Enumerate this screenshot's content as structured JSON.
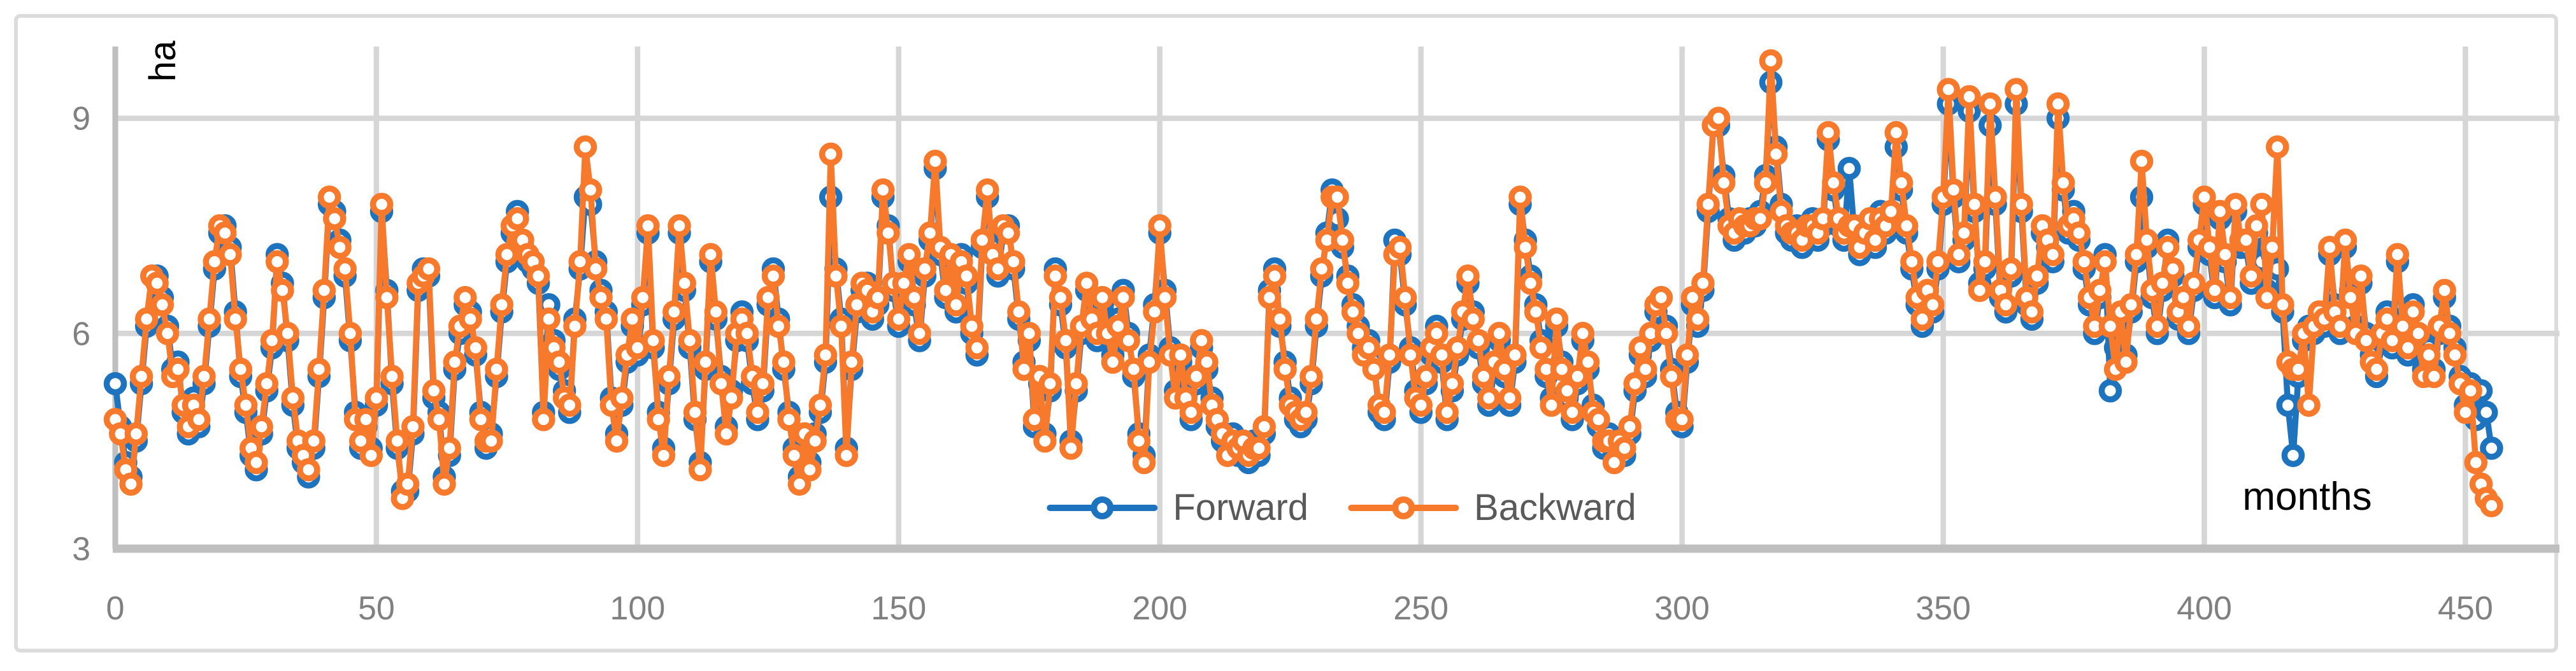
{
  "style": {
    "background": "#FFFFFF",
    "frame_color": "#DCDCDC",
    "gridline_color": "#D6D6D6",
    "axis_line_color": "#BFBFBF",
    "tick_label_color": "#808080",
    "legend_text_color": "#595959",
    "axis_title_color": "#000000"
  },
  "chart_data": {
    "type": "line",
    "title": "",
    "xlabel": "months",
    "ylabel": "ha",
    "x_ticks": [
      0,
      50,
      100,
      150,
      200,
      250,
      300,
      350,
      400,
      450
    ],
    "y_ticks": [
      3,
      6,
      9
    ],
    "xlim": [
      0,
      468
    ],
    "ylim": [
      3,
      10
    ],
    "grid": true,
    "legend_position": "bottom-center-inside",
    "marker": "open-circle",
    "x_start": 0,
    "x_step": 1,
    "series": [
      {
        "name": "Forward",
        "color": "#1E73BE",
        "values": [
          5.3,
          4.7,
          4.2,
          4.0,
          4.5,
          5.3,
          6.1,
          6.8,
          6.8,
          6.5,
          6.1,
          5.5,
          5.6,
          4.9,
          4.6,
          5.1,
          4.7,
          5.3,
          6.1,
          6.9,
          7.4,
          7.5,
          7.2,
          6.3,
          5.4,
          4.9,
          4.3,
          4.1,
          4.6,
          5.2,
          5.8,
          7.1,
          6.7,
          5.9,
          5.0,
          4.4,
          4.2,
          4.0,
          4.4,
          5.4,
          6.5,
          7.8,
          7.7,
          7.3,
          6.8,
          5.9,
          4.9,
          4.4,
          4.7,
          4.4,
          5.0,
          7.7,
          6.6,
          5.3,
          4.4,
          3.8,
          3.8,
          4.6,
          6.6,
          6.9,
          6.8,
          5.1,
          4.9,
          4.0,
          4.3,
          5.5,
          6.0,
          6.4,
          6.3,
          5.7,
          4.9,
          4.4,
          4.6,
          5.4,
          6.3,
          7.0,
          7.4,
          7.7,
          7.2,
          7.0,
          6.9,
          6.7,
          4.9,
          6.4,
          5.9,
          5.5,
          5.2,
          4.9,
          6.2,
          6.9,
          7.9,
          7.8,
          7.0,
          6.6,
          6.3,
          5.1,
          4.6,
          5.0,
          5.6,
          6.1,
          5.7,
          6.4,
          7.4,
          5.8,
          4.9,
          4.4,
          5.3,
          6.2,
          7.4,
          6.6,
          5.8,
          4.8,
          4.2,
          5.5,
          7.0,
          6.2,
          5.4,
          4.7,
          5.2,
          5.9,
          6.3,
          5.9,
          5.3,
          4.8,
          5.2,
          6.4,
          6.9,
          6.2,
          5.5,
          4.9,
          4.4,
          4.0,
          4.5,
          4.2,
          4.6,
          4.9,
          5.6,
          7.9,
          6.9,
          6.2,
          4.4,
          5.5,
          6.3,
          6.6,
          6.7,
          6.2,
          6.4,
          7.9,
          7.5,
          6.6,
          6.1,
          6.6,
          7.0,
          6.4,
          5.9,
          6.8,
          7.3,
          8.3,
          7.1,
          6.5,
          7.0,
          6.3,
          7.1,
          6.7,
          6.0,
          5.7,
          7.2,
          7.9,
          7.2,
          6.8,
          7.4,
          7.5,
          6.9,
          6.2,
          5.6,
          5.9,
          4.7,
          5.3,
          4.6,
          5.2,
          6.9,
          6.4,
          5.8,
          4.5,
          5.2,
          6.0,
          6.6,
          6.3,
          5.9,
          6.4,
          6.1,
          5.7,
          6.2,
          6.6,
          6.0,
          5.4,
          4.6,
          4.3,
          5.7,
          6.4,
          7.4,
          6.6,
          5.8,
          5.2,
          5.6,
          5.2,
          4.8,
          5.3,
          5.8,
          5.5,
          5.1,
          4.7,
          4.5,
          4.4,
          4.6,
          4.3,
          4.4,
          4.2,
          4.5,
          4.3,
          4.6,
          6.6,
          6.9,
          6.1,
          5.6,
          5.1,
          4.8,
          4.7,
          4.8,
          5.3,
          6.1,
          6.8,
          7.4,
          8.0,
          7.6,
          7.2,
          6.8,
          6.4,
          6.1,
          5.8,
          5.9,
          5.6,
          4.9,
          4.8,
          5.6,
          7.3,
          7.1,
          6.4,
          5.8,
          5.2,
          4.9,
          5.3,
          5.7,
          6.1,
          5.6,
          4.8,
          5.2,
          5.7,
          6.2,
          6.7,
          6.3,
          5.8,
          5.3,
          5.0,
          5.5,
          5.9,
          5.4,
          5.0,
          5.6,
          7.8,
          7.3,
          6.8,
          6.4,
          5.9,
          5.4,
          5.1,
          6.1,
          5.6,
          5.1,
          4.8,
          5.3,
          5.9,
          5.5,
          5.0,
          4.7,
          4.4,
          4.6,
          4.3,
          4.4,
          4.3,
          4.6,
          5.2,
          5.7,
          5.4,
          5.9,
          6.3,
          6.5,
          6.1,
          5.5,
          4.9,
          4.7,
          5.6,
          6.4,
          6.1,
          6.6,
          7.7,
          8.9,
          8.9,
          8.2,
          7.6,
          7.3,
          7.5,
          7.4,
          7.6,
          7.5,
          7.7,
          8.2,
          9.5,
          8.6,
          7.8,
          7.4,
          7.3,
          7.5,
          7.2,
          7.4,
          7.6,
          7.3,
          7.5,
          8.7,
          8.0,
          7.5,
          7.3,
          8.3,
          7.4,
          7.1,
          7.3,
          7.5,
          7.2,
          7.7,
          7.4,
          7.6,
          8.6,
          8.0,
          7.4,
          6.9,
          6.4,
          6.1,
          6.5,
          6.3,
          6.9,
          7.8,
          9.2,
          7.9,
          7.0,
          7.3,
          9.1,
          7.7,
          6.7,
          6.9,
          8.9,
          7.8,
          6.5,
          6.3,
          6.8,
          9.2,
          7.7,
          6.4,
          6.2,
          6.7,
          7.4,
          7.2,
          7.0,
          9.0,
          8.0,
          7.4,
          7.7,
          7.3,
          6.9,
          6.4,
          6.0,
          6.5,
          7.1,
          5.2,
          5.8,
          6.2,
          5.7,
          6.3,
          7.0,
          7.9,
          7.2,
          6.5,
          6.0,
          6.6,
          7.3,
          6.8,
          6.2,
          6.4,
          6.0,
          6.6,
          7.2,
          7.8,
          7.1,
          6.5,
          7.6,
          7.0,
          6.4,
          7.7,
          7.2,
          7.2,
          6.7,
          7.4,
          7.0,
          6.6,
          7.1,
          6.9,
          6.3,
          5.0,
          4.3,
          5.4,
          5.9,
          6.1,
          6.0,
          6.2,
          6.1,
          7.1,
          6.4,
          6.0,
          7.2,
          6.6,
          6.1,
          6.7,
          6.0,
          5.7,
          5.4,
          5.9,
          6.3,
          5.8,
          7.0,
          6.2,
          5.7,
          6.4,
          5.9,
          5.5,
          5.8,
          5.5,
          6.0,
          6.5,
          6.1,
          5.8,
          5.4,
          5.0,
          5.3,
          4.8,
          5.2,
          4.9,
          4.4
        ]
      },
      {
        "name": "Backward",
        "color": "#F7792B",
        "values": [
          4.8,
          4.6,
          4.1,
          3.9,
          4.6,
          5.4,
          6.2,
          6.8,
          6.7,
          6.4,
          6.0,
          5.4,
          5.5,
          5.0,
          4.7,
          5.0,
          4.8,
          5.4,
          6.2,
          7.0,
          7.5,
          7.4,
          7.1,
          6.2,
          5.5,
          5.0,
          4.4,
          4.2,
          4.7,
          5.3,
          5.9,
          7.0,
          6.6,
          6.0,
          5.1,
          4.5,
          4.3,
          4.1,
          4.5,
          5.5,
          6.6,
          7.9,
          7.6,
          7.2,
          6.9,
          6.0,
          4.8,
          4.5,
          4.8,
          4.3,
          5.1,
          7.8,
          6.5,
          5.4,
          4.5,
          3.7,
          3.9,
          4.7,
          6.7,
          6.8,
          6.9,
          5.2,
          4.8,
          3.9,
          4.4,
          5.6,
          6.1,
          6.5,
          6.2,
          5.8,
          4.8,
          4.5,
          4.5,
          5.5,
          6.4,
          7.1,
          7.5,
          7.6,
          7.3,
          7.1,
          7.0,
          6.8,
          4.8,
          6.2,
          5.8,
          5.6,
          5.1,
          5.0,
          6.1,
          7.0,
          8.6,
          8.0,
          6.9,
          6.5,
          6.2,
          5.0,
          4.5,
          5.1,
          5.7,
          6.2,
          5.8,
          6.5,
          7.5,
          5.9,
          4.8,
          4.3,
          5.4,
          6.3,
          7.5,
          6.7,
          5.9,
          4.9,
          4.1,
          5.6,
          7.1,
          6.3,
          5.3,
          4.6,
          5.1,
          6.0,
          6.2,
          6.0,
          5.4,
          4.9,
          5.3,
          6.5,
          6.8,
          6.1,
          5.6,
          4.8,
          4.3,
          3.9,
          4.6,
          4.1,
          4.5,
          5.0,
          5.7,
          8.5,
          6.8,
          6.1,
          4.3,
          5.6,
          6.4,
          6.7,
          6.6,
          6.3,
          6.5,
          8.0,
          7.4,
          6.7,
          6.2,
          6.7,
          7.1,
          6.5,
          6.0,
          6.9,
          7.4,
          8.4,
          7.2,
          6.6,
          7.1,
          6.4,
          7.0,
          6.8,
          6.1,
          5.8,
          7.3,
          8.0,
          7.1,
          6.9,
          7.5,
          7.4,
          7.0,
          6.3,
          5.5,
          6.0,
          4.8,
          5.4,
          4.5,
          5.3,
          6.8,
          6.5,
          5.9,
          4.4,
          5.3,
          6.1,
          6.7,
          6.2,
          6.0,
          6.5,
          6.0,
          5.6,
          6.1,
          6.5,
          5.9,
          5.5,
          4.5,
          4.2,
          5.6,
          6.3,
          7.5,
          6.5,
          5.7,
          5.1,
          5.7,
          5.1,
          4.9,
          5.4,
          5.9,
          5.6,
          5.0,
          4.8,
          4.6,
          4.3,
          4.5,
          4.4,
          4.5,
          4.3,
          4.4,
          4.4,
          4.7,
          6.5,
          6.8,
          6.2,
          5.5,
          5.0,
          4.9,
          4.8,
          4.9,
          5.4,
          6.2,
          6.9,
          7.3,
          7.9,
          7.9,
          7.3,
          6.7,
          6.3,
          6.0,
          5.7,
          5.8,
          5.5,
          5.0,
          4.9,
          5.7,
          7.1,
          7.2,
          6.5,
          5.7,
          5.1,
          5.0,
          5.4,
          5.8,
          6.0,
          5.7,
          4.9,
          5.3,
          5.8,
          6.3,
          6.8,
          6.2,
          5.9,
          5.4,
          5.1,
          5.6,
          6.0,
          5.5,
          5.1,
          5.7,
          7.9,
          7.2,
          6.7,
          6.3,
          5.8,
          5.5,
          5.0,
          6.2,
          5.5,
          5.2,
          4.9,
          5.4,
          6.0,
          5.6,
          4.9,
          4.8,
          4.5,
          4.5,
          4.2,
          4.5,
          4.4,
          4.7,
          5.3,
          5.8,
          5.5,
          6.0,
          6.4,
          6.5,
          6.0,
          5.4,
          4.8,
          4.8,
          5.7,
          6.5,
          6.2,
          6.7,
          7.8,
          8.9,
          9.0,
          8.1,
          7.5,
          7.4,
          7.6,
          7.5,
          7.5,
          7.6,
          7.6,
          8.1,
          9.8,
          8.5,
          7.7,
          7.5,
          7.4,
          7.4,
          7.3,
          7.5,
          7.5,
          7.4,
          7.6,
          8.8,
          8.1,
          7.6,
          7.4,
          7.5,
          7.5,
          7.2,
          7.4,
          7.6,
          7.3,
          7.6,
          7.5,
          7.7,
          8.8,
          8.1,
          7.5,
          7.0,
          6.5,
          6.2,
          6.6,
          6.4,
          7.0,
          7.9,
          9.4,
          8.0,
          7.1,
          7.4,
          9.3,
          7.8,
          6.6,
          7.0,
          9.2,
          7.9,
          6.6,
          6.4,
          6.9,
          9.4,
          7.8,
          6.5,
          6.3,
          6.8,
          7.5,
          7.3,
          7.1,
          9.2,
          8.1,
          7.5,
          7.6,
          7.4,
          7.0,
          6.5,
          6.1,
          6.6,
          7.0,
          6.1,
          5.5,
          6.3,
          5.6,
          6.4,
          7.1,
          8.4,
          7.3,
          6.6,
          6.1,
          6.7,
          7.2,
          6.9,
          6.3,
          6.5,
          6.1,
          6.7,
          7.3,
          7.9,
          7.2,
          6.6,
          7.7,
          7.1,
          6.5,
          7.8,
          7.3,
          7.3,
          6.8,
          7.5,
          7.8,
          6.5,
          7.2,
          8.6,
          6.4,
          5.6,
          5.5,
          5.5,
          6.0,
          5.0,
          6.1,
          6.3,
          6.2,
          7.2,
          6.3,
          6.1,
          7.3,
          6.5,
          6.0,
          6.8,
          5.9,
          5.6,
          5.5,
          6.0,
          6.2,
          5.9,
          7.1,
          6.1,
          5.8,
          6.3,
          6.0,
          5.4,
          5.7,
          5.4,
          6.1,
          6.6,
          6.0,
          5.7,
          5.3,
          4.9,
          5.2,
          4.2,
          3.9,
          3.7,
          3.6
        ]
      }
    ]
  }
}
